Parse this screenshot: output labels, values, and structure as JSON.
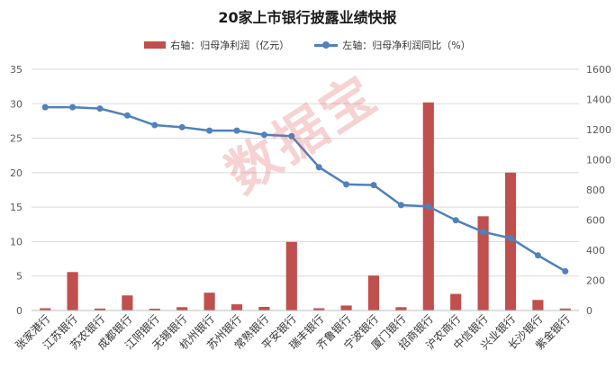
{
  "chart_data": {
    "type": "bar+line",
    "title": "20家上市银行披露业绩快报",
    "categories": [
      "张家港行",
      "江苏银行",
      "苏农银行",
      "成都银行",
      "江阴银行",
      "无锡银行",
      "杭州银行",
      "苏州银行",
      "常熟银行",
      "平安银行",
      "瑞丰银行",
      "齐鲁银行",
      "宁波银行",
      "厦门银行",
      "招商银行",
      "沪农商行",
      "中信银行",
      "兴业银行",
      "长沙银行",
      "紫金银行"
    ],
    "series": [
      {
        "name": "右轴：归母净利润（亿元）",
        "type": "bar",
        "axis": "right",
        "color": "#c0504d",
        "values": [
          15,
          255,
          13,
          100,
          12,
          22,
          118,
          41,
          24,
          455,
          15,
          33,
          232,
          22,
          1380,
          110,
          625,
          915,
          70,
          13
        ]
      },
      {
        "name": "左轴：归母净利润同比（%）",
        "type": "line",
        "axis": "left",
        "color": "#4f81bd",
        "values": [
          29.5,
          29.5,
          29.3,
          28.3,
          26.9,
          26.6,
          26.1,
          26.1,
          25.5,
          25.3,
          20.8,
          18.3,
          18.2,
          15.3,
          15.1,
          13.1,
          11.4,
          10.5,
          8.0,
          5.7
        ]
      }
    ],
    "y_left": {
      "min": 0,
      "max": 35,
      "ticks": [
        "0",
        "5",
        "10",
        "15",
        "20",
        "25",
        "30",
        "35"
      ]
    },
    "y_right": {
      "min": 0,
      "max": 1600,
      "ticks": [
        "0",
        "200",
        "400",
        "600",
        "800",
        "1000",
        "1200",
        "1400",
        "1600"
      ]
    },
    "grid": "horizontal",
    "legend": "top-center"
  },
  "watermark": "数据宝"
}
